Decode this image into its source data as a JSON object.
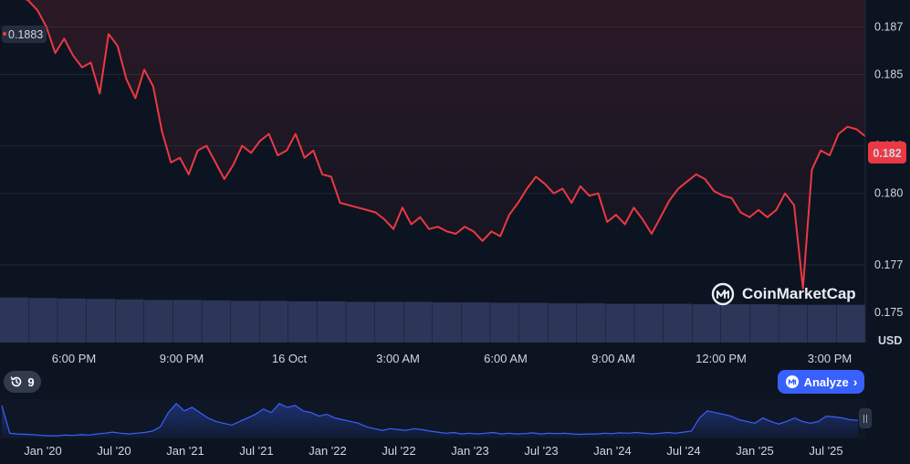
{
  "chart_data": {
    "type": "line",
    "currency_label": "USD",
    "y_ticks": [
      "0.187",
      "0.185",
      "0.182",
      "0.180",
      "0.177",
      "0.175"
    ],
    "x_ticks": [
      "6:00 PM",
      "9:00 PM",
      "16 Oct",
      "3:00 AM",
      "6:00 AM",
      "9:00 AM",
      "12:00 PM",
      "3:00 PM"
    ],
    "ylim": [
      0.17373,
      0.18813
    ],
    "open_price_label": "0.1883",
    "open_price": 0.1883,
    "current_price_label": "0.182",
    "current_price": 0.1822,
    "series": [
      {
        "values": [
          0.1884,
          0.1882,
          0.1883,
          0.1881,
          0.1877,
          0.187,
          0.1859,
          0.1865,
          0.1858,
          0.1853,
          0.1855,
          0.1842,
          0.1867,
          0.1862,
          0.1848,
          0.184,
          0.1852,
          0.1845,
          0.1826,
          0.1813,
          0.1815,
          0.1808,
          0.1818,
          0.182,
          0.1813,
          0.1806,
          0.1812,
          0.182,
          0.1817,
          0.1822,
          0.1825,
          0.1816,
          0.1818,
          0.1825,
          0.1815,
          0.1818,
          0.1808,
          0.1807,
          0.1796,
          0.1795,
          0.1794,
          0.1793,
          0.1792,
          0.1789,
          0.1785,
          0.1794,
          0.1787,
          0.179,
          0.1785,
          0.1786,
          0.1784,
          0.1783,
          0.1786,
          0.1784,
          0.178,
          0.1784,
          0.1782,
          0.1791,
          0.1796,
          0.1802,
          0.1807,
          0.1804,
          0.18,
          0.1802,
          0.1796,
          0.1803,
          0.1799,
          0.18,
          0.1788,
          0.1791,
          0.1787,
          0.1794,
          0.1789,
          0.1783,
          0.179,
          0.1797,
          0.1802,
          0.1805,
          0.1808,
          0.1806,
          0.1801,
          0.1799,
          0.1798,
          0.1792,
          0.179,
          0.1793,
          0.179,
          0.1793,
          0.18,
          0.1795,
          0.176,
          0.181,
          0.1818,
          0.1816,
          0.1825,
          0.1828,
          0.1827,
          0.1824
        ]
      }
    ],
    "volume": [
      0.93,
      0.92,
      0.91,
      0.9,
      0.89,
      0.88,
      0.88,
      0.87,
      0.86,
      0.86,
      0.85,
      0.85,
      0.84,
      0.84,
      0.84,
      0.83,
      0.83,
      0.82,
      0.82,
      0.81,
      0.81,
      0.8,
      0.8,
      0.8,
      0.79,
      0.79,
      0.79,
      0.78,
      0.78,
      0.78
    ],
    "navigator": {
      "x_ticks": [
        "Jan '20",
        "Jul '20",
        "Jan '21",
        "Jul '21",
        "Jan '22",
        "Jul '22",
        "Jan '23",
        "Jul '23",
        "Jan '24",
        "Jul '24",
        "Jan '25",
        "Jul '25"
      ],
      "values": [
        0.9,
        0.12,
        0.1,
        0.09,
        0.08,
        0.06,
        0.05,
        0.05,
        0.07,
        0.06,
        0.08,
        0.07,
        0.1,
        0.12,
        0.15,
        0.12,
        0.1,
        0.12,
        0.14,
        0.18,
        0.3,
        0.7,
        0.95,
        0.75,
        0.85,
        0.7,
        0.55,
        0.45,
        0.4,
        0.35,
        0.45,
        0.55,
        0.65,
        0.8,
        0.7,
        0.95,
        0.85,
        0.9,
        0.75,
        0.7,
        0.6,
        0.65,
        0.55,
        0.5,
        0.45,
        0.4,
        0.3,
        0.25,
        0.2,
        0.25,
        0.22,
        0.2,
        0.25,
        0.22,
        0.18,
        0.15,
        0.12,
        0.14,
        0.1,
        0.12,
        0.1,
        0.12,
        0.14,
        0.1,
        0.12,
        0.1,
        0.11,
        0.13,
        0.1,
        0.12,
        0.11,
        0.12,
        0.1,
        0.09,
        0.1,
        0.1,
        0.12,
        0.11,
        0.13,
        0.12,
        0.14,
        0.12,
        0.1,
        0.12,
        0.14,
        0.12,
        0.15,
        0.18,
        0.55,
        0.75,
        0.7,
        0.65,
        0.6,
        0.5,
        0.45,
        0.4,
        0.55,
        0.45,
        0.38,
        0.45,
        0.55,
        0.45,
        0.4,
        0.45,
        0.6,
        0.58,
        0.55,
        0.5,
        0.48
      ]
    }
  },
  "controls": {
    "history_count": "9",
    "analyze_label": "Analyze",
    "brand_name": "CoinMarketCap"
  },
  "colors": {
    "background": "#0d1421",
    "line": "#ea3943",
    "volume": "#2b3659",
    "navigator_line": "#3861fb",
    "analyze_button": "#3861fb"
  }
}
